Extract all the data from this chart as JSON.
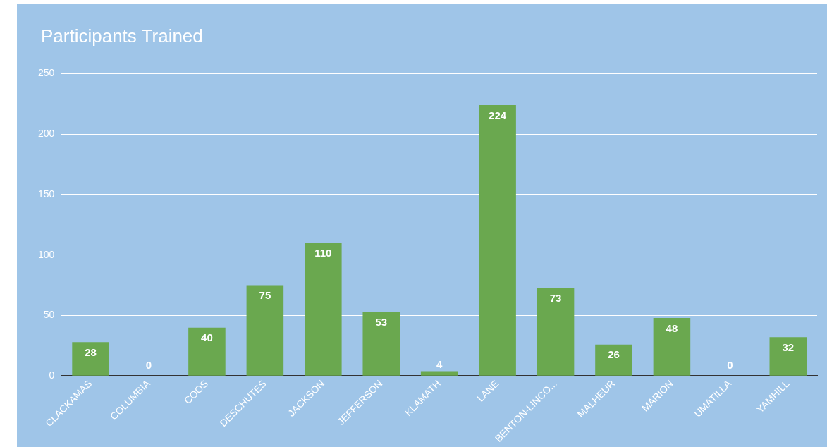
{
  "chart_data": {
    "type": "bar",
    "title": "Participants Trained",
    "categories": [
      "CLACKAMAS",
      "COLUMBIA",
      "COOS",
      "DESCHUTES",
      "JACKSON",
      "JEFFERSON",
      "KLAMATH",
      "LANE",
      "BENTON-LINCO...",
      "MALHEUR",
      "MARION",
      "UMATILLA",
      "YAMHILL"
    ],
    "values": [
      28,
      0,
      40,
      75,
      110,
      53,
      4,
      224,
      73,
      26,
      48,
      0,
      32
    ],
    "color": "#6aa84f",
    "ylim": [
      0,
      250
    ],
    "yticks": [
      0,
      50,
      100,
      150,
      200,
      250
    ],
    "grid": "y",
    "data_labels": true,
    "legend": false
  }
}
